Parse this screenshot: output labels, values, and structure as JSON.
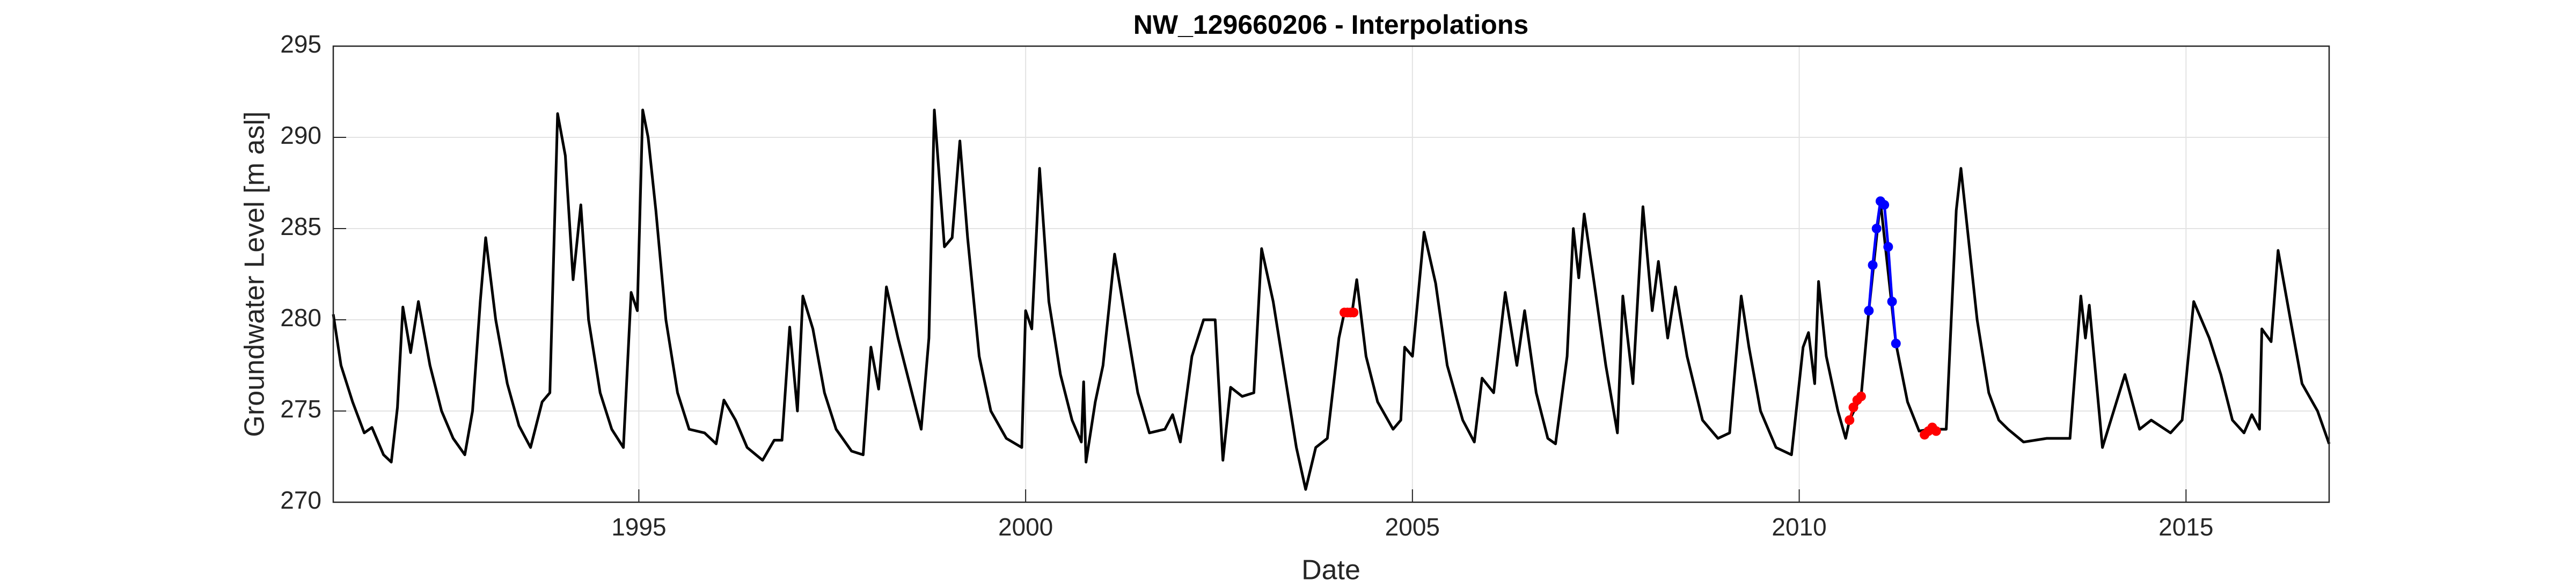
{
  "chart_data": {
    "type": "line",
    "title": "NW_129660206 - Interpolations",
    "xlabel": "Date",
    "ylabel": "Groundwater Level [m asl]",
    "xlim": [
      1991.05,
      2016.85
    ],
    "ylim": [
      270,
      295
    ],
    "xticks": [
      1995,
      2000,
      2005,
      2010,
      2015
    ],
    "yticks": [
      270,
      275,
      280,
      285,
      290,
      295
    ],
    "grid": true,
    "series": [
      {
        "color": "#000000",
        "marker": false,
        "x": [
          1991.05,
          1991.15,
          1991.3,
          1991.45,
          1991.55,
          1991.7,
          1991.8,
          1991.88,
          1991.95,
          1992.05,
          1992.15,
          1992.3,
          1992.45,
          1992.6,
          1992.75,
          1992.85,
          1992.95,
          1993.02,
          1993.15,
          1993.3,
          1993.45,
          1993.6,
          1993.75,
          1993.85,
          1993.95,
          1994.05,
          1994.15,
          1994.25,
          1994.35,
          1994.5,
          1994.65,
          1994.8,
          1994.9,
          1994.98,
          1995.05,
          1995.12,
          1995.22,
          1995.35,
          1995.5,
          1995.65,
          1995.85,
          1996.0,
          1996.1,
          1996.25,
          1996.4,
          1996.6,
          1996.75,
          1996.85,
          1996.95,
          1997.05,
          1997.12,
          1997.25,
          1997.4,
          1997.55,
          1997.75,
          1997.9,
          1998.0,
          1998.1,
          1998.2,
          1998.35,
          1998.5,
          1998.65,
          1998.75,
          1998.82,
          1998.95,
          1999.05,
          1999.15,
          1999.25,
          1999.4,
          1999.55,
          1999.75,
          1999.95,
          2000.0,
          2000.08,
          2000.18,
          2000.3,
          2000.45,
          2000.6,
          2000.72,
          2000.75,
          2000.78,
          2000.9,
          2001.0,
          2001.15,
          2001.3,
          2001.45,
          2001.6,
          2001.8,
          2001.9,
          2002.0,
          2002.15,
          2002.3,
          2002.45,
          2002.55,
          2002.65,
          2002.8,
          2002.95,
          2003.05,
          2003.2,
          2003.35,
          2003.5,
          2003.62,
          2003.75,
          2003.9,
          2004.05,
          2004.12,
          2004.22,
          2004.28,
          2004.4,
          2004.55,
          2004.75,
          2004.85,
          2004.9,
          2005.0,
          2005.15,
          2005.3,
          2005.45,
          2005.65,
          2005.8,
          2005.9,
          2006.05,
          2006.2,
          2006.35,
          2006.45,
          2006.6,
          2006.75,
          2006.85,
          2007.0,
          2007.08,
          2007.15,
          2007.22,
          2007.35,
          2007.5,
          2007.65,
          2007.72,
          2007.85,
          2007.98,
          2008.1,
          2008.18,
          2008.3,
          2008.4,
          2008.55,
          2008.75,
          2008.95,
          2009.1,
          2009.25,
          2009.35,
          2009.5,
          2009.7,
          2009.9,
          2010.05,
          2010.12,
          2010.2,
          2010.25,
          2010.35,
          2010.5,
          2010.6,
          2010.65,
          2010.8,
          2010.9,
          2011.05,
          2011.25,
          2011.4,
          2011.55,
          2011.7,
          2011.9,
          2012.03,
          2012.09,
          2012.3,
          2012.45,
          2012.58,
          2012.7,
          2012.9,
          2013.2,
          2013.5,
          2013.64,
          2013.7,
          2013.75,
          2013.92,
          2014.21,
          2014.4,
          2014.55,
          2014.8,
          2014.95,
          2015.1,
          2015.3,
          2015.45,
          2015.6,
          2015.75,
          2015.85,
          2015.95,
          2015.98,
          2016.1,
          2016.19,
          2016.35,
          2016.5,
          2016.7,
          2016.85
        ],
        "values": [
          280.3,
          277.5,
          275.5,
          273.8,
          274.1,
          272.6,
          272.2,
          275.2,
          280.7,
          278.2,
          281.0,
          277.5,
          275,
          273.5,
          272.6,
          275,
          281,
          284.5,
          280,
          276.5,
          274.2,
          273,
          275.5,
          276,
          291.3,
          289,
          282.2,
          286.3,
          280,
          276,
          274,
          273,
          281.5,
          280.5,
          291.5,
          290,
          286,
          280,
          276,
          274,
          273.8,
          273.2,
          275.6,
          274.5,
          273,
          272.3,
          273.4,
          273.4,
          279.6,
          275,
          281.3,
          279.5,
          276,
          274,
          272.8,
          272.6,
          278.5,
          276.2,
          281.8,
          279,
          276.5,
          274,
          279,
          291.5,
          284,
          284.5,
          289.8,
          284.5,
          278,
          275,
          273.5,
          273,
          280.5,
          279.5,
          288.3,
          281,
          277,
          274.5,
          273.3,
          276.6,
          272.2,
          275.5,
          277.5,
          283.6,
          279.8,
          276,
          273.8,
          274,
          274.8,
          273.3,
          278,
          280,
          280,
          272.3,
          276.3,
          275.8,
          276,
          283.9,
          281,
          277,
          273,
          270.7,
          273,
          273.5,
          279,
          280.4,
          280.4,
          282.2,
          278,
          275.5,
          274,
          274.5,
          278.5,
          278,
          284.8,
          282,
          277.5,
          274.5,
          273.3,
          276.8,
          276,
          281.5,
          277.5,
          280.5,
          276,
          273.5,
          273.2,
          278,
          285,
          282.3,
          285.8,
          282,
          277.5,
          273.8,
          281.3,
          276.5,
          286.2,
          280.5,
          283.2,
          279,
          281.8,
          278,
          274.5,
          273.5,
          273.8,
          281.3,
          278.5,
          275,
          273,
          272.6,
          278.5,
          279.3,
          276.5,
          282.1,
          278,
          275,
          273.5,
          274.5,
          275.8,
          280.5,
          286.5,
          278.7,
          275.5,
          273.9,
          274,
          274,
          286,
          288.3,
          280,
          276,
          274.5,
          274,
          273.3,
          273.5,
          273.5,
          281.3,
          279,
          280.8,
          273,
          277,
          274,
          274.5,
          273.8,
          274.5,
          281,
          279,
          277,
          274.5,
          273.8,
          274.8,
          274,
          279.5,
          278.8,
          283.8,
          280,
          276.5,
          275,
          273.2
        ]
      },
      {
        "color": "#ff0000",
        "marker": true,
        "x": [
          2004.12,
          2004.16,
          2004.2,
          2004.24,
          2004.26,
          2010.65,
          2010.7,
          2010.75,
          2010.8,
          2010.82,
          2011.62,
          2011.67,
          2011.72,
          2011.77
        ],
        "values": [
          280.4,
          280.4,
          280.4,
          280.4,
          null,
          274.5,
          275.2,
          275.6,
          275.8,
          null,
          273.7,
          273.9,
          274.1,
          273.9
        ]
      },
      {
        "color": "#0000ff",
        "marker": true,
        "x": [
          2010.9,
          2010.95,
          2011.0,
          2011.05,
          2011.1,
          2011.15,
          2011.2,
          2011.25
        ],
        "values": [
          280.5,
          283,
          285,
          286.5,
          286.3,
          284,
          281,
          278.7
        ]
      }
    ]
  }
}
